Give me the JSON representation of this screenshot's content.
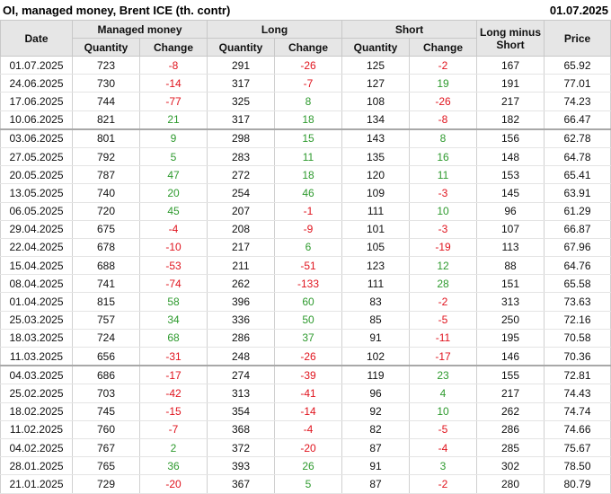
{
  "header": {
    "title": "OI, managed money, Brent ICE (th. contr)",
    "date": "01.07.2025"
  },
  "table": {
    "columns": {
      "date": "Date",
      "managed_money": "Managed money",
      "long": "Long",
      "short": "Short",
      "long_minus_short": "Long minus Short",
      "price": "Price",
      "quantity": "Quantity",
      "change": "Change"
    },
    "positive_color": "#2e9a2e",
    "negative_color": "#e0141e",
    "rows": [
      [
        "01.07.2025",
        "723",
        "-8",
        "291",
        "-26",
        "125",
        "-2",
        "167",
        "65.92"
      ],
      [
        "24.06.2025",
        "730",
        "-14",
        "317",
        "-7",
        "127",
        "19",
        "191",
        "77.01"
      ],
      [
        "17.06.2025",
        "744",
        "-77",
        "325",
        "8",
        "108",
        "-26",
        "217",
        "74.23"
      ],
      [
        "10.06.2025",
        "821",
        "21",
        "317",
        "18",
        "134",
        "-8",
        "182",
        "66.47"
      ],
      [
        "03.06.2025",
        "801",
        "9",
        "298",
        "15",
        "143",
        "8",
        "156",
        "62.78"
      ],
      [
        "27.05.2025",
        "792",
        "5",
        "283",
        "11",
        "135",
        "16",
        "148",
        "64.78"
      ],
      [
        "20.05.2025",
        "787",
        "47",
        "272",
        "18",
        "120",
        "11",
        "153",
        "65.41"
      ],
      [
        "13.05.2025",
        "740",
        "20",
        "254",
        "46",
        "109",
        "-3",
        "145",
        "63.91"
      ],
      [
        "06.05.2025",
        "720",
        "45",
        "207",
        "-1",
        "111",
        "10",
        "96",
        "61.29"
      ],
      [
        "29.04.2025",
        "675",
        "-4",
        "208",
        "-9",
        "101",
        "-3",
        "107",
        "66.87"
      ],
      [
        "22.04.2025",
        "678",
        "-10",
        "217",
        "6",
        "105",
        "-19",
        "113",
        "67.96"
      ],
      [
        "15.04.2025",
        "688",
        "-53",
        "211",
        "-51",
        "123",
        "12",
        "88",
        "64.76"
      ],
      [
        "08.04.2025",
        "741",
        "-74",
        "262",
        "-133",
        "111",
        "28",
        "151",
        "65.58"
      ],
      [
        "01.04.2025",
        "815",
        "58",
        "396",
        "60",
        "83",
        "-2",
        "313",
        "73.63"
      ],
      [
        "25.03.2025",
        "757",
        "34",
        "336",
        "50",
        "85",
        "-5",
        "250",
        "72.16"
      ],
      [
        "18.03.2025",
        "724",
        "68",
        "286",
        "37",
        "91",
        "-11",
        "195",
        "70.58"
      ],
      [
        "11.03.2025",
        "656",
        "-31",
        "248",
        "-26",
        "102",
        "-17",
        "146",
        "70.36"
      ],
      [
        "04.03.2025",
        "686",
        "-17",
        "274",
        "-39",
        "119",
        "23",
        "155",
        "72.81"
      ],
      [
        "25.02.2025",
        "703",
        "-42",
        "313",
        "-41",
        "96",
        "4",
        "217",
        "74.43"
      ],
      [
        "18.02.2025",
        "745",
        "-15",
        "354",
        "-14",
        "92",
        "10",
        "262",
        "74.74"
      ],
      [
        "11.02.2025",
        "760",
        "-7",
        "368",
        "-4",
        "82",
        "-5",
        "286",
        "74.66"
      ],
      [
        "04.02.2025",
        "767",
        "2",
        "372",
        "-20",
        "87",
        "-4",
        "285",
        "75.67"
      ],
      [
        "28.01.2025",
        "765",
        "36",
        "393",
        "26",
        "91",
        "3",
        "302",
        "78.50"
      ],
      [
        "21.01.2025",
        "729",
        "-20",
        "367",
        "5",
        "87",
        "-2",
        "280",
        "80.79"
      ]
    ]
  }
}
